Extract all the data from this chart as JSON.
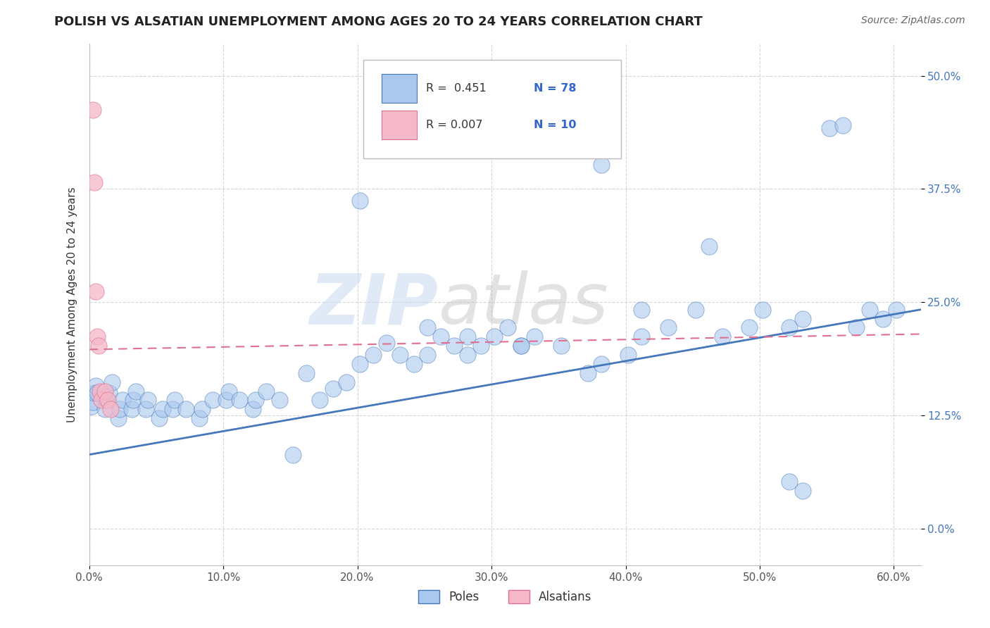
{
  "title": "POLISH VS ALSATIAN UNEMPLOYMENT AMONG AGES 20 TO 24 YEARS CORRELATION CHART",
  "source": "Source: ZipAtlas.com",
  "ylabel": "Unemployment Among Ages 20 to 24 years",
  "xlabel_ticks": [
    "0.0%",
    "10.0%",
    "20.0%",
    "30.0%",
    "40.0%",
    "50.0%",
    "60.0%"
  ],
  "xlabel_vals": [
    0.0,
    0.1,
    0.2,
    0.3,
    0.4,
    0.5,
    0.6
  ],
  "ylabel_ticks": [
    "0.0%",
    "12.5%",
    "25.0%",
    "37.5%",
    "50.0%"
  ],
  "ylabel_vals": [
    0.0,
    0.125,
    0.25,
    0.375,
    0.5
  ],
  "xmin": 0.0,
  "xmax": 0.62,
  "ymin": -0.04,
  "ymax": 0.535,
  "legend_polish_R": "R =  0.451",
  "legend_polish_N": "N = 78",
  "legend_alsatian_R": "R = 0.007",
  "legend_alsatian_N": "N = 10",
  "polish_color": "#aac8ee",
  "alsatian_color": "#f5b8c8",
  "polish_line_color": "#4477bb",
  "alsatian_line_color": "#e07090",
  "watermark_zip": "ZIP",
  "watermark_atlas": "atlas",
  "background_color": "#ffffff",
  "grid_color": "#cccccc",
  "poles_scatter_x": [
    0.002,
    0.003,
    0.004,
    0.005,
    0.006,
    0.012,
    0.013,
    0.015,
    0.017,
    0.022,
    0.023,
    0.025,
    0.032,
    0.033,
    0.035,
    0.042,
    0.044,
    0.052,
    0.055,
    0.062,
    0.064,
    0.072,
    0.082,
    0.084,
    0.092,
    0.102,
    0.104,
    0.112,
    0.122,
    0.124,
    0.132,
    0.142,
    0.152,
    0.162,
    0.172,
    0.182,
    0.192,
    0.202,
    0.212,
    0.222,
    0.232,
    0.242,
    0.252,
    0.262,
    0.272,
    0.282,
    0.292,
    0.302,
    0.312,
    0.322,
    0.332,
    0.352,
    0.372,
    0.382,
    0.402,
    0.412,
    0.432,
    0.452,
    0.462,
    0.472,
    0.492,
    0.502,
    0.522,
    0.532,
    0.552,
    0.562,
    0.572,
    0.582,
    0.592,
    0.602,
    0.522,
    0.532,
    0.382,
    0.412,
    0.252,
    0.322,
    0.282,
    0.202
  ],
  "poles_scatter_y": [
    0.135,
    0.14,
    0.15,
    0.158,
    0.15,
    0.132,
    0.142,
    0.15,
    0.162,
    0.122,
    0.132,
    0.142,
    0.132,
    0.142,
    0.152,
    0.132,
    0.142,
    0.122,
    0.132,
    0.132,
    0.142,
    0.132,
    0.122,
    0.132,
    0.142,
    0.142,
    0.152,
    0.142,
    0.132,
    0.142,
    0.152,
    0.142,
    0.082,
    0.172,
    0.142,
    0.155,
    0.162,
    0.182,
    0.192,
    0.205,
    0.192,
    0.182,
    0.192,
    0.212,
    0.202,
    0.192,
    0.202,
    0.212,
    0.222,
    0.202,
    0.212,
    0.202,
    0.172,
    0.182,
    0.192,
    0.242,
    0.222,
    0.242,
    0.312,
    0.212,
    0.222,
    0.242,
    0.222,
    0.232,
    0.442,
    0.445,
    0.222,
    0.242,
    0.232,
    0.242,
    0.052,
    0.042,
    0.402,
    0.212,
    0.222,
    0.202,
    0.212,
    0.362
  ],
  "alsatian_scatter_x": [
    0.003,
    0.004,
    0.005,
    0.006,
    0.007,
    0.008,
    0.009,
    0.012,
    0.014,
    0.016
  ],
  "alsatian_scatter_y": [
    0.462,
    0.382,
    0.262,
    0.212,
    0.202,
    0.152,
    0.142,
    0.152,
    0.142,
    0.132
  ],
  "poles_line_x0": 0.0,
  "poles_line_x1": 0.62,
  "poles_line_y0": 0.082,
  "poles_line_y1": 0.242,
  "alsatian_line_x0": 0.0,
  "alsatian_line_x1": 0.62,
  "alsatian_line_y0": 0.198,
  "alsatian_line_y1": 0.215
}
